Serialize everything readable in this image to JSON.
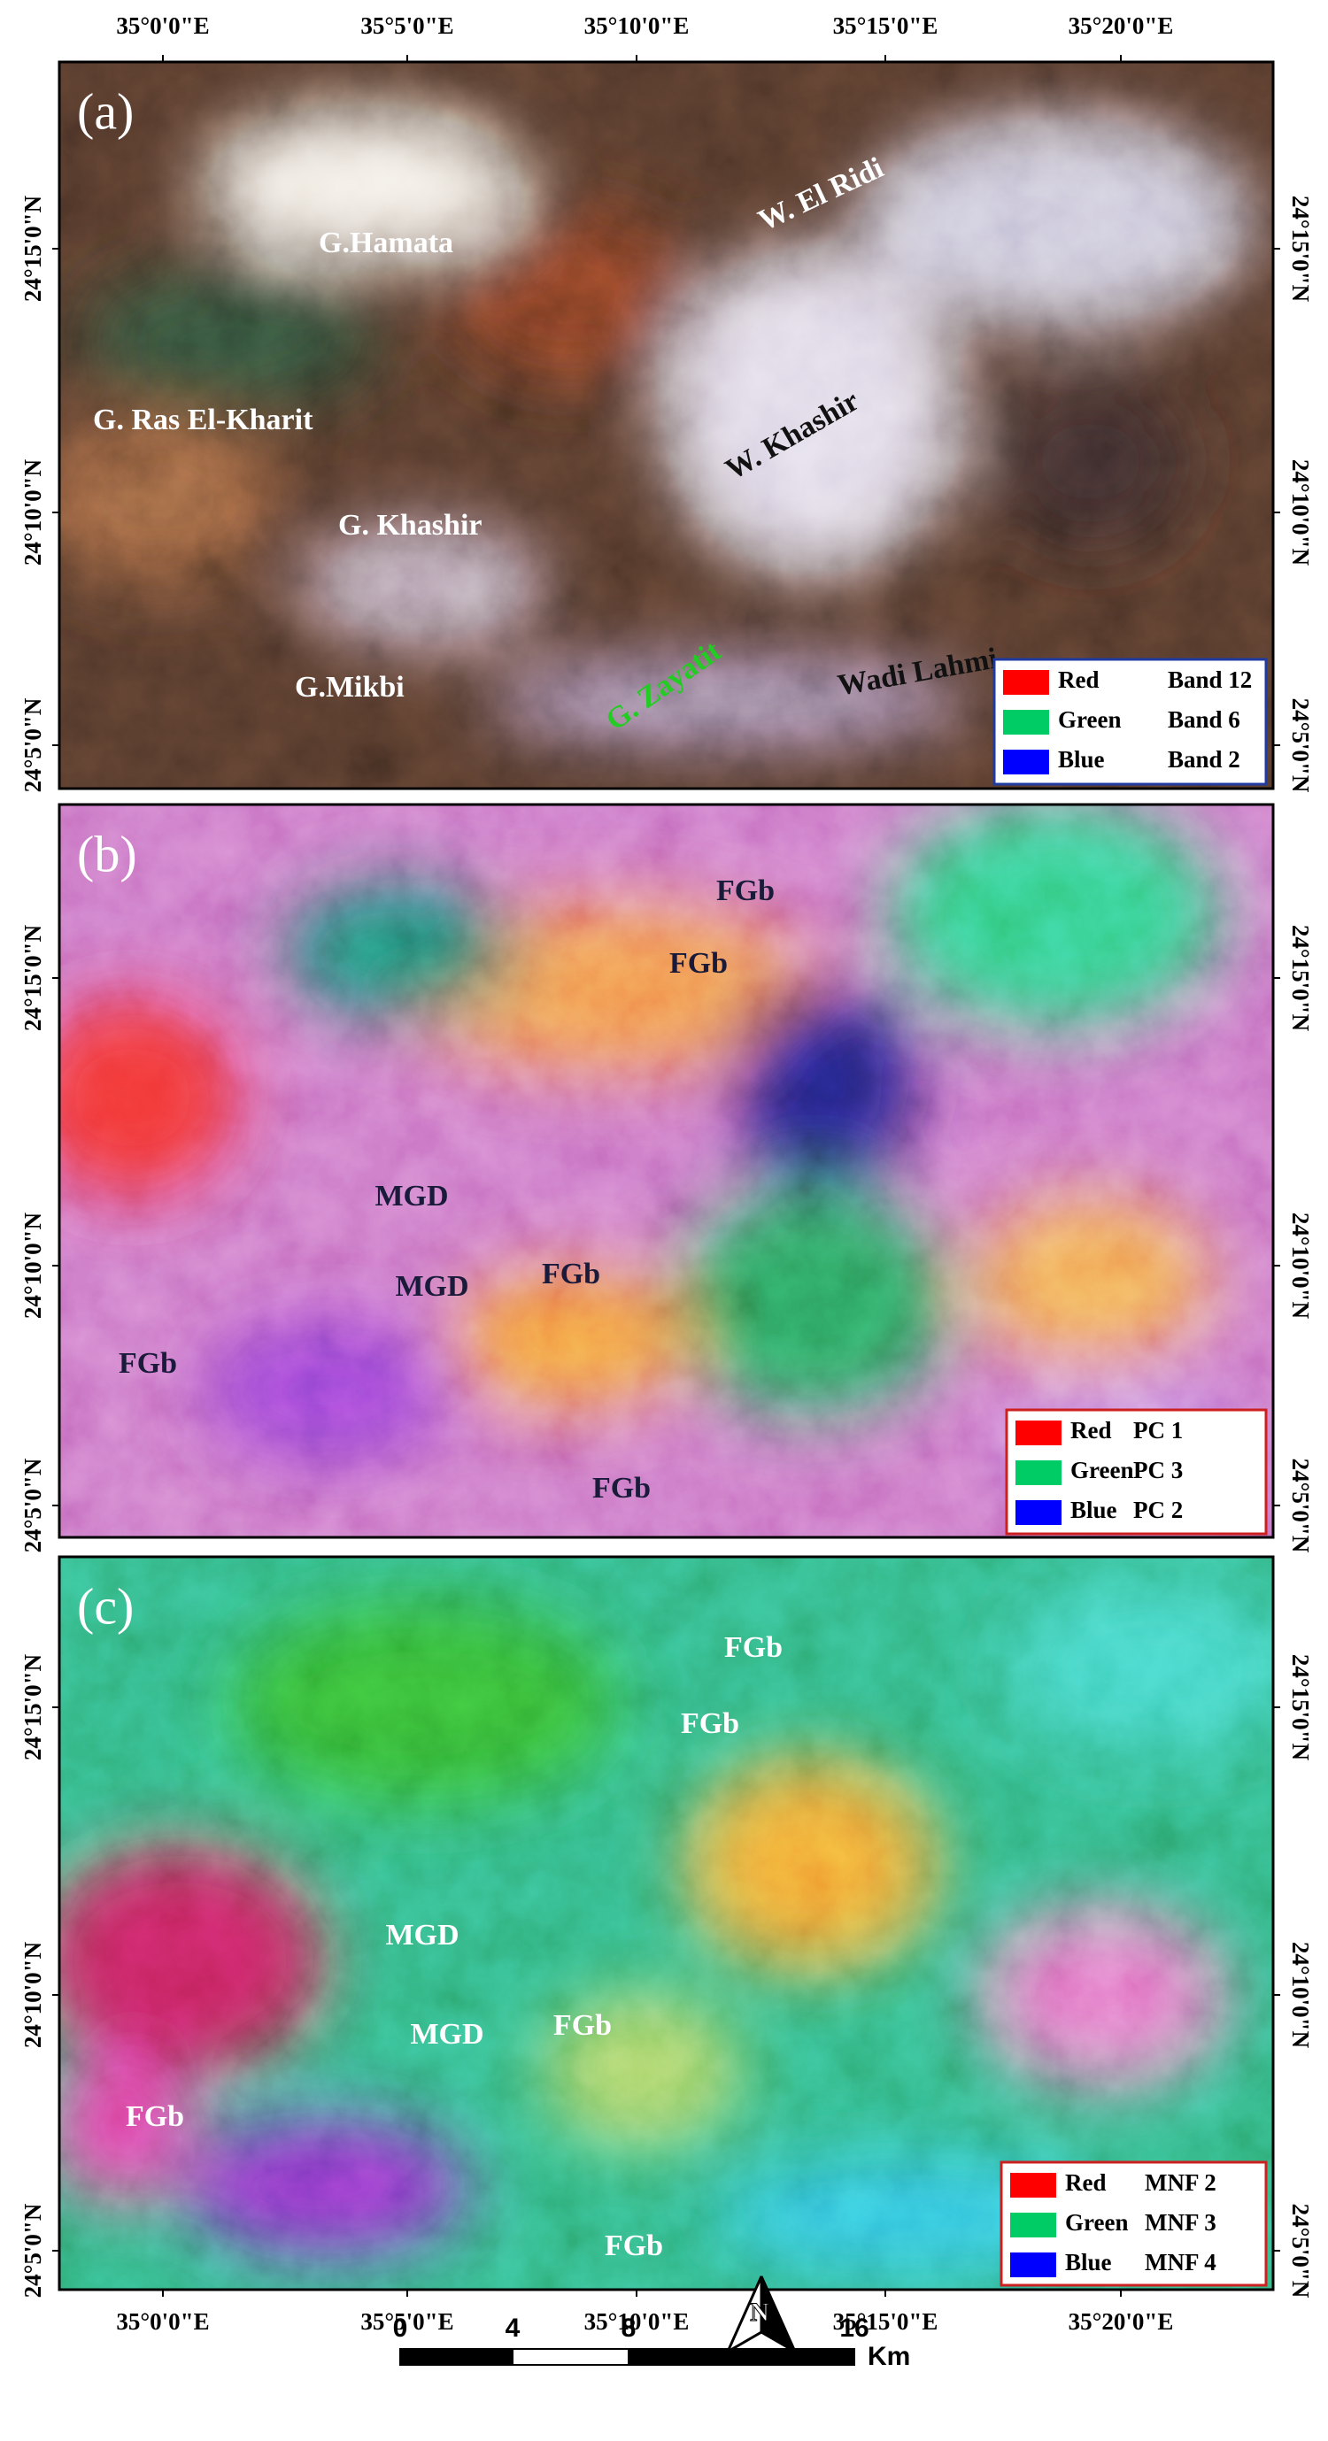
{
  "longitude_labels": [
    "35°0'0\"E",
    "35°5'0\"E",
    "35°10'0\"E",
    "35°15'0\"E",
    "35°20'0\"E"
  ],
  "panels": [
    {
      "label": "(a)",
      "latitude_labels": [
        "24°15'0\"N",
        "24°10'0\"N",
        "24°5'0\"N"
      ],
      "places": [
        "G.Hamata",
        "W. El Ridi",
        "G. Ras El-Kharit",
        "W. Khashir",
        "G. Khashir",
        "G.Mikbi",
        "G. Zayatit",
        "Wadi Lahmi"
      ],
      "legend": [
        {
          "channel": "Red",
          "source": "Band 12"
        },
        {
          "channel": "Green",
          "source": "Band 6"
        },
        {
          "channel": "Blue",
          "source": "Band 2"
        }
      ]
    },
    {
      "label": "(b)",
      "latitude_labels": [
        "24°15'0\"N",
        "24°10'0\"N",
        "24°5'0\"N"
      ],
      "places": [
        "FGb",
        "FGb",
        "MGD",
        "MGD",
        "FGb",
        "FGb",
        "FGb"
      ],
      "legend": [
        {
          "channel": "Red",
          "source": "PC 1"
        },
        {
          "channel": "Green",
          "source": "PC 3"
        },
        {
          "channel": "Blue",
          "source": "PC 2"
        }
      ]
    },
    {
      "label": "(c)",
      "latitude_labels": [
        "24°15'0\"N",
        "24°10'0\"N",
        "24°5'0\"N"
      ],
      "places": [
        "FGb",
        "FGb",
        "MGD",
        "MGD",
        "FGb",
        "FGb",
        "FGb"
      ],
      "legend": [
        {
          "channel": "Red",
          "source": "MNF 2"
        },
        {
          "channel": "Green",
          "source": "MNF 3"
        },
        {
          "channel": "Blue",
          "source": "MNF 4"
        }
      ]
    }
  ],
  "scale_bar": {
    "ticks": [
      0,
      4,
      8,
      16
    ],
    "unit": "Km"
  },
  "north_arrow": "N"
}
